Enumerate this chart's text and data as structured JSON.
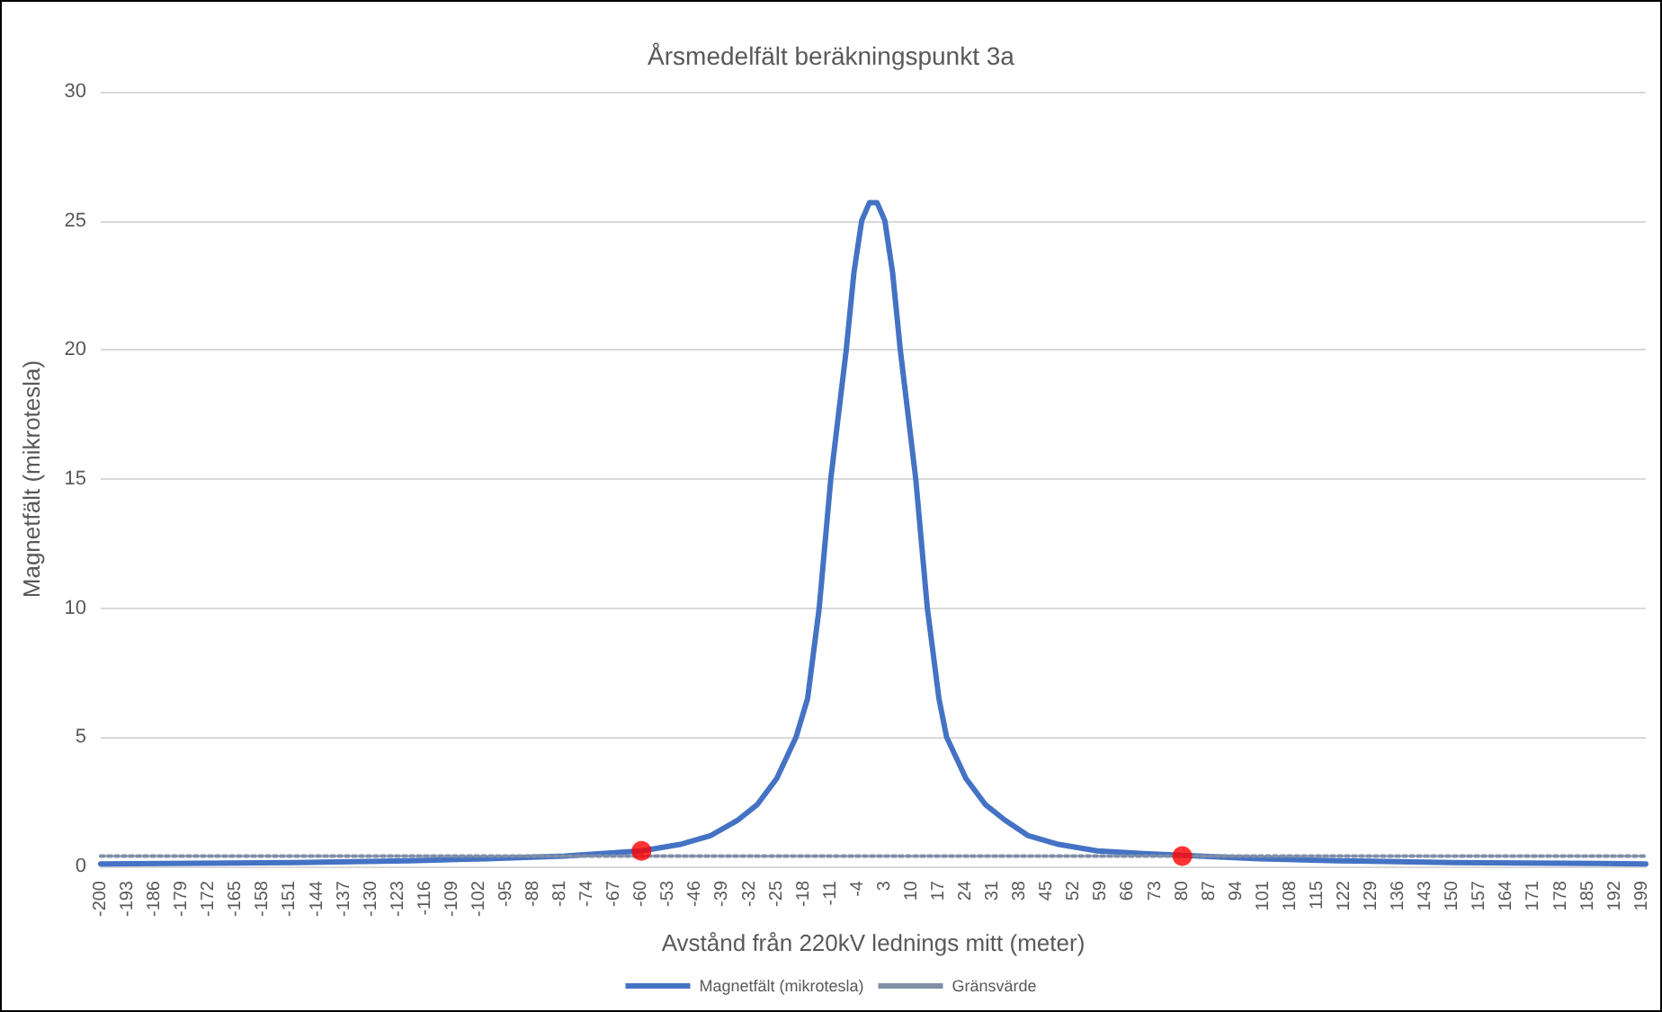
{
  "chart_data": {
    "type": "line",
    "title": "Årsmedelfält beräkningspunkt 3a",
    "xlabel": "Avstånd från 220kV lednings mitt (meter)",
    "ylabel": "Magnetfält (mikrotesla)",
    "xlim": [
      -200,
      200
    ],
    "ylim": [
      0,
      30
    ],
    "yticks": [
      0,
      5,
      10,
      15,
      20,
      25,
      30
    ],
    "xticks": [
      -200,
      -193,
      -186,
      -179,
      -172,
      -165,
      -158,
      -151,
      -144,
      -137,
      -130,
      -123,
      -116,
      -109,
      -102,
      -95,
      -88,
      -81,
      -74,
      -67,
      -60,
      -53,
      -46,
      -39,
      -32,
      -25,
      -18,
      -11,
      -4,
      3,
      10,
      17,
      24,
      31,
      38,
      45,
      52,
      59,
      66,
      73,
      80,
      87,
      94,
      101,
      108,
      115,
      122,
      129,
      136,
      143,
      150,
      157,
      164,
      171,
      178,
      185,
      192,
      199
    ],
    "grid": "y",
    "legend": "bottom",
    "marker": "none",
    "series": [
      {
        "name": "Magnetfält (mikrotesla)",
        "color": "#4472c4",
        "line_style": "solid",
        "x": [
          -200,
          -150,
          -120,
          -100,
          -80,
          -60,
          -50,
          -42,
          -35,
          -30,
          -25,
          -20,
          -17,
          -14,
          -11,
          -9,
          -7,
          -5,
          -3,
          -1,
          1,
          3,
          5,
          7,
          9,
          11,
          14,
          17,
          19,
          24,
          29,
          34,
          40,
          48,
          58,
          70,
          100,
          120,
          150,
          200
        ],
        "values": [
          0.1,
          0.15,
          0.22,
          0.3,
          0.4,
          0.6,
          0.85,
          1.2,
          1.8,
          2.4,
          3.4,
          5,
          6.5,
          10,
          15,
          17.5,
          20,
          23,
          25,
          25.7,
          25.7,
          25,
          23,
          20,
          17.5,
          15,
          10,
          6.5,
          5,
          3.4,
          2.4,
          1.8,
          1.2,
          0.85,
          0.6,
          0.5,
          0.3,
          0.22,
          0.15,
          0.1
        ]
      },
      {
        "name": "Gränsvärde",
        "color": "#7f8fa6",
        "line_style": "dotted",
        "x": [
          -200,
          200
        ],
        "values": [
          0.4,
          0.4
        ]
      },
      {
        "type": "scatter",
        "color": "#ff0000",
        "marker": "circle",
        "x": [
          -60,
          80
        ],
        "values": [
          0.6,
          0.4
        ]
      }
    ]
  }
}
